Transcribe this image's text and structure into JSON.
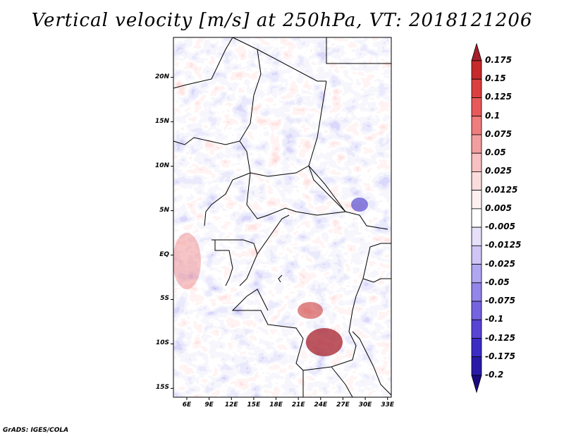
{
  "title": "Vertical velocity [m/s] at 250hPa, VT: 2018121206",
  "credit": "GrADS: IGES/COLA",
  "map": {
    "lat_labels": [
      "20N",
      "15N",
      "10N",
      "5N",
      "EQ",
      "5S",
      "10S",
      "15S"
    ],
    "lon_labels": [
      "6E",
      "9E",
      "12E",
      "15E",
      "18E",
      "21E",
      "24E",
      "27E",
      "30E",
      "33E"
    ],
    "lat_range": [
      -16,
      24.5
    ],
    "lon_range": [
      4.2,
      33.5
    ]
  },
  "colorbar": {
    "labels": [
      "0.175",
      "0.15",
      "0.125",
      "0.1",
      "0.075",
      "0.05",
      "0.025",
      "0.0125",
      "0.005",
      "-0.005",
      "-0.0125",
      "-0.025",
      "-0.05",
      "-0.075",
      "-0.1",
      "-0.125",
      "-0.175",
      "-0.2"
    ],
    "colors": [
      "#a51e2a",
      "#c62a2a",
      "#dc3f3f",
      "#e85a5a",
      "#ef7d7d",
      "#f39e9e",
      "#f8c0c0",
      "#fbdcdc",
      "#fff0f0",
      "#ffffff",
      "#e6e0f8",
      "#cfc6f5",
      "#b1a6f0",
      "#9385e9",
      "#7563e0",
      "#5845d6",
      "#3b2cc6",
      "#2a1aa8",
      "#1a0a80"
    ]
  }
}
